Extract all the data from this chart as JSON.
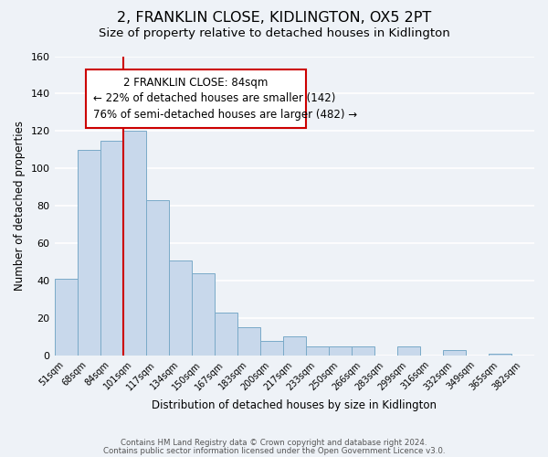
{
  "title": "2, FRANKLIN CLOSE, KIDLINGTON, OX5 2PT",
  "subtitle": "Size of property relative to detached houses in Kidlington",
  "xlabel": "Distribution of detached houses by size in Kidlington",
  "ylabel": "Number of detached properties",
  "footer_line1": "Contains HM Land Registry data © Crown copyright and database right 2024.",
  "footer_line2": "Contains public sector information licensed under the Open Government Licence v3.0.",
  "bar_labels": [
    "51sqm",
    "68sqm",
    "84sqm",
    "101sqm",
    "117sqm",
    "134sqm",
    "150sqm",
    "167sqm",
    "183sqm",
    "200sqm",
    "217sqm",
    "233sqm",
    "250sqm",
    "266sqm",
    "283sqm",
    "299sqm",
    "316sqm",
    "332sqm",
    "349sqm",
    "365sqm",
    "382sqm"
  ],
  "bar_values": [
    41,
    110,
    115,
    120,
    83,
    51,
    44,
    23,
    15,
    8,
    10,
    5,
    5,
    5,
    0,
    5,
    0,
    3,
    0,
    1,
    0
  ],
  "bar_color": "#c8d8eb",
  "bar_edge_color": "#7aaac8",
  "highlight_bar_index": 2,
  "red_line_x": 2.5,
  "ylim": [
    0,
    160
  ],
  "yticks": [
    0,
    20,
    40,
    60,
    80,
    100,
    120,
    140,
    160
  ],
  "annotation_title": "2 FRANKLIN CLOSE: 84sqm",
  "annotation_line1": "← 22% of detached houses are smaller (142)",
  "annotation_line2": "76% of semi-detached houses are larger (482) →",
  "background_color": "#eef2f7",
  "grid_color": "#ffffff",
  "title_fontsize": 11.5,
  "subtitle_fontsize": 9.5,
  "annotation_fontsize": 8.5,
  "red_color": "#cc0000"
}
